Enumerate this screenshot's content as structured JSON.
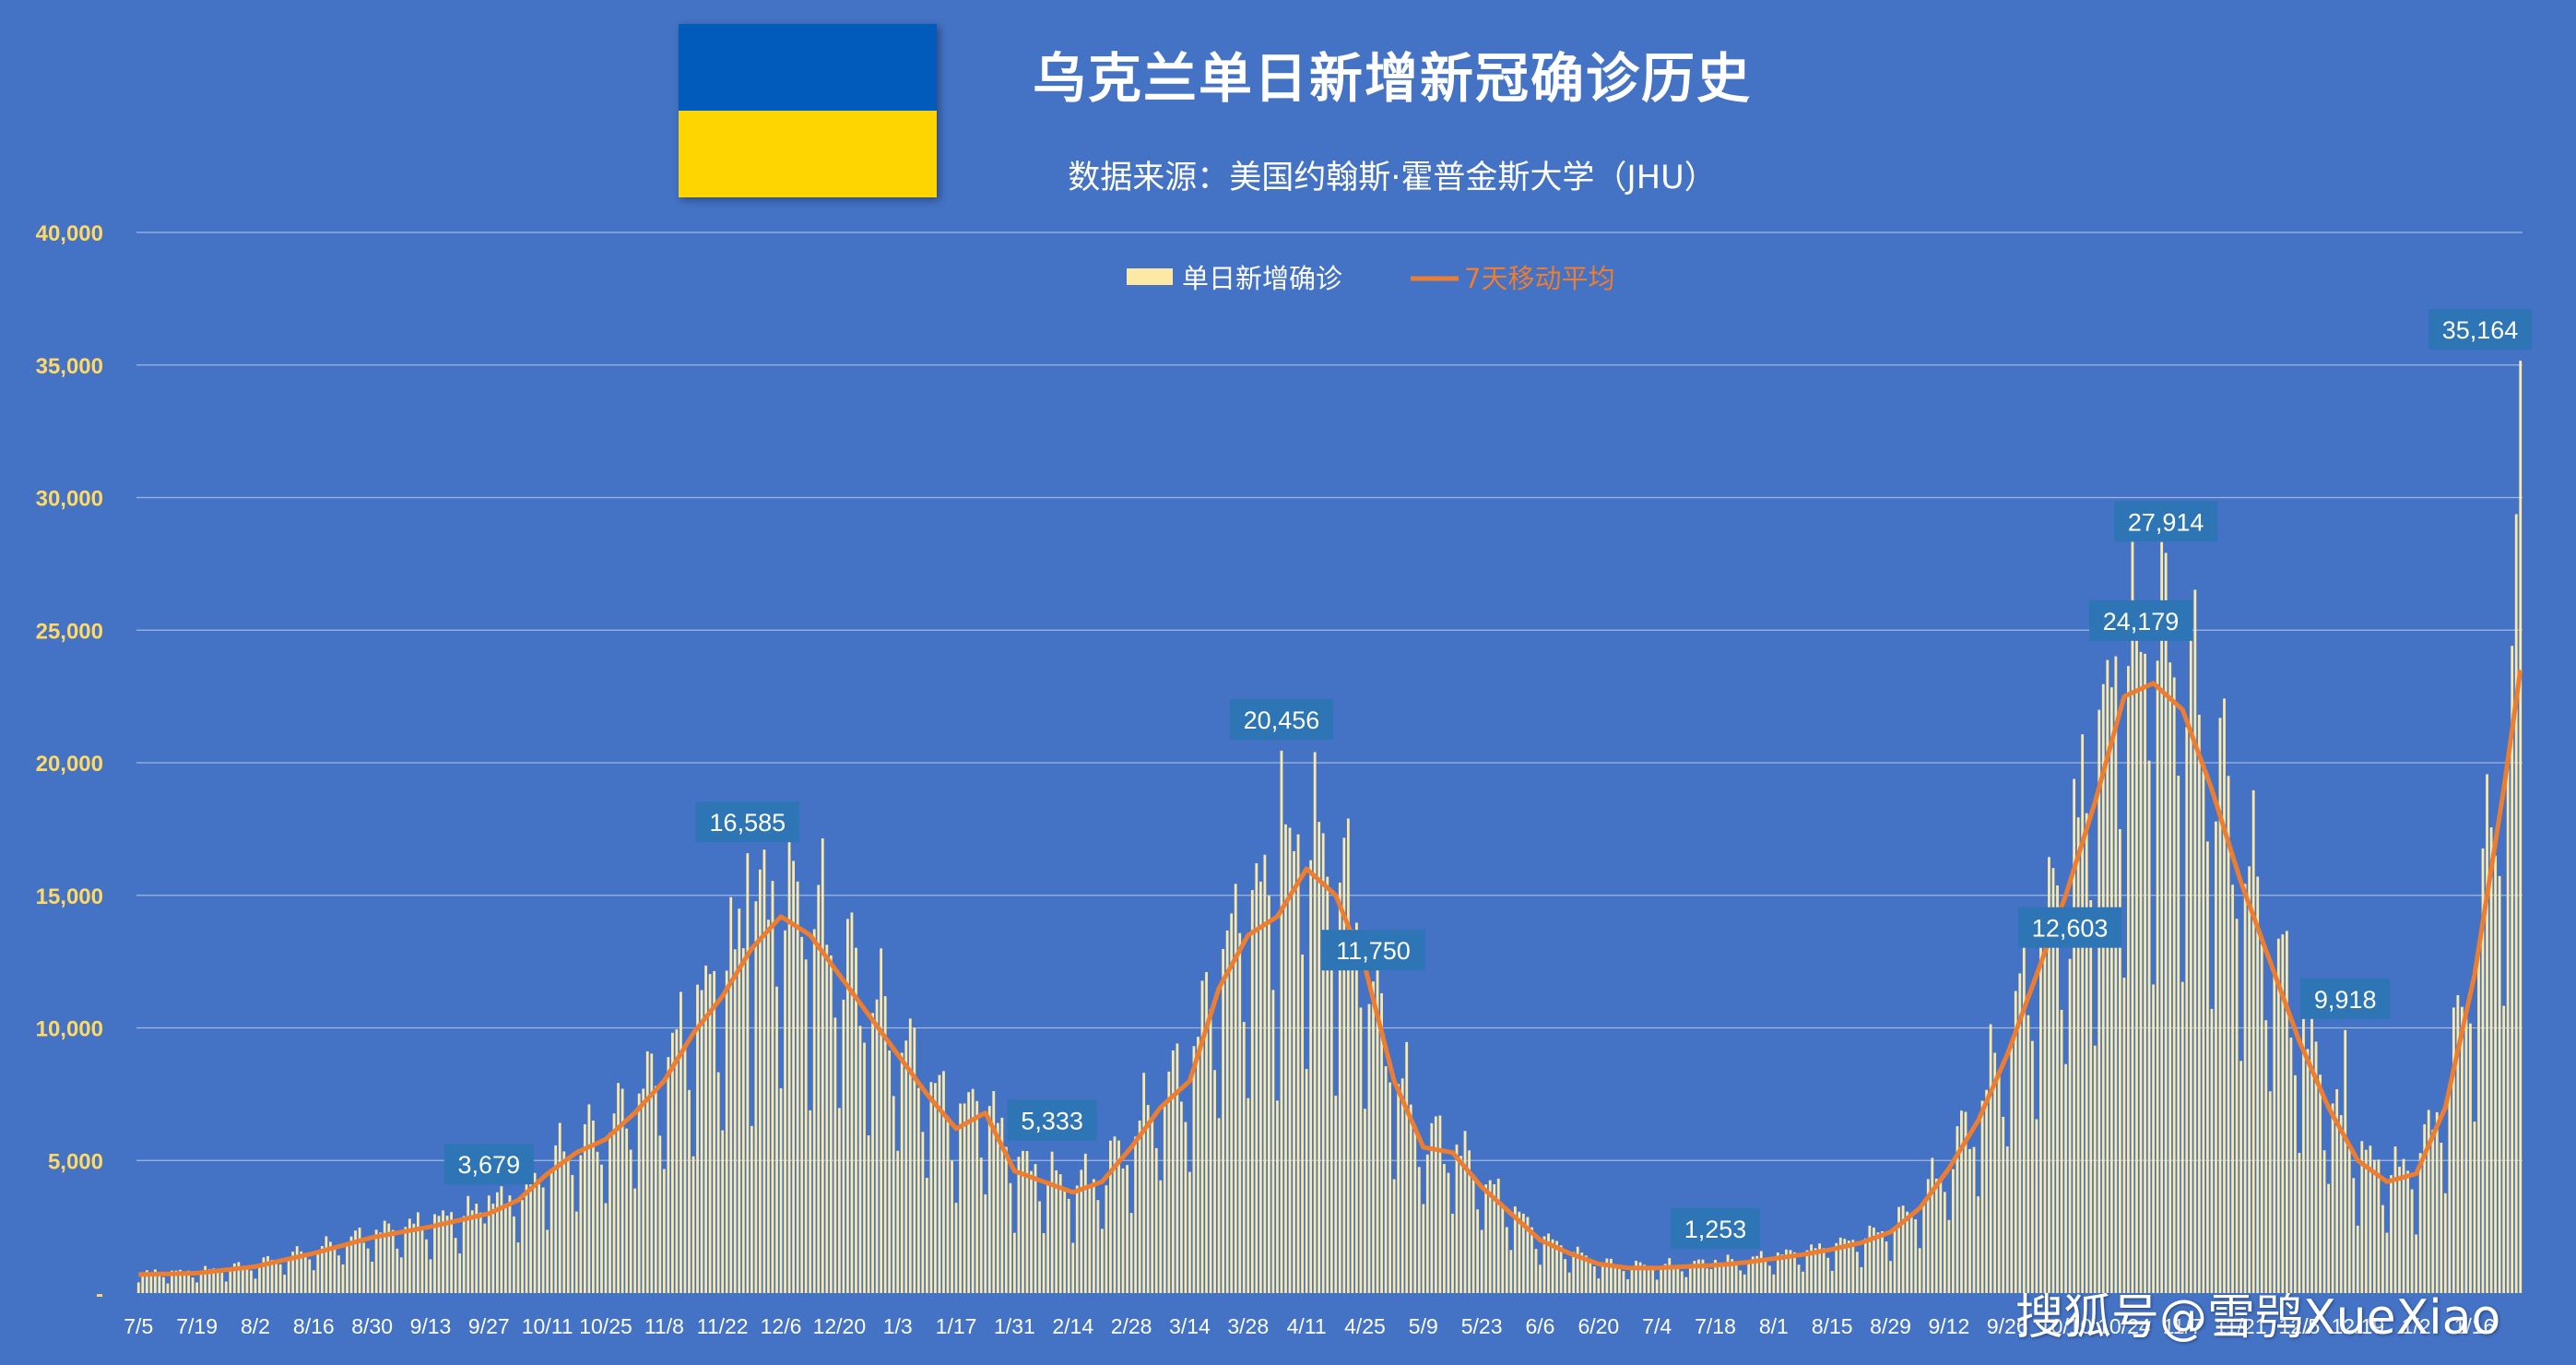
{
  "flag": {
    "name": "ukraine-flag",
    "colors": [
      "#005bbb",
      "#ffd500"
    ]
  },
  "watermark": "搜狐号@雪鸮XueXiao",
  "colors": {
    "background": "#4472c4",
    "bars": "#fde9a3",
    "line": "#ed7d31",
    "callout": "#2e75b6",
    "ytick": "#ffd966"
  },
  "chart_data": {
    "type": "bar",
    "title": "乌克兰单日新增新冠确诊历史",
    "subtitle": "数据来源：美国约翰斯·霍普金斯大学（JHU）",
    "xlabel": "",
    "ylabel": "",
    "ylim": [
      0,
      40000
    ],
    "y_ticks": [
      {
        "value": 0,
        "label": "-"
      },
      {
        "value": 5000,
        "label": "5,000"
      },
      {
        "value": 10000,
        "label": "10,000"
      },
      {
        "value": 15000,
        "label": "15,000"
      },
      {
        "value": 20000,
        "label": "20,000"
      },
      {
        "value": 25000,
        "label": "25,000"
      },
      {
        "value": 30000,
        "label": "30,000"
      },
      {
        "value": 35000,
        "label": "35,000"
      },
      {
        "value": 40000,
        "label": "40,000"
      }
    ],
    "grid": true,
    "legend_position": "top-center",
    "x_tick_labels": [
      "7/5",
      "7/19",
      "8/2",
      "8/16",
      "8/30",
      "9/13",
      "9/27",
      "10/11",
      "10/25",
      "11/8",
      "11/22",
      "12/6",
      "12/20",
      "1/3",
      "1/17",
      "1/31",
      "2/14",
      "2/28",
      "3/14",
      "3/28",
      "4/11",
      "4/25",
      "5/9",
      "5/23",
      "6/6",
      "6/20",
      "7/4",
      "7/18",
      "8/1",
      "8/15",
      "8/29",
      "9/12",
      "9/26",
      "10/10",
      "10/24",
      "11/7",
      "11/21",
      "12/5",
      "12/19",
      "1/2",
      "1/16"
    ],
    "x_tick_day_offsets": [
      0,
      14,
      28,
      42,
      56,
      70,
      84,
      98,
      112,
      126,
      140,
      154,
      168,
      182,
      196,
      210,
      224,
      238,
      252,
      266,
      280,
      294,
      308,
      322,
      336,
      350,
      364,
      378,
      392,
      406,
      420,
      434,
      448,
      462,
      476,
      490,
      504,
      518,
      532,
      546,
      560
    ],
    "num_days": 572,
    "series": [
      {
        "name": "单日新增确诊",
        "kind": "bar",
        "color": "#fde9a3"
      },
      {
        "name": "7天移动平均",
        "kind": "line",
        "color": "#ed7d31"
      }
    ],
    "moving_average_knots": [
      [
        0,
        700
      ],
      [
        14,
        750
      ],
      [
        28,
        1000
      ],
      [
        42,
        1500
      ],
      [
        56,
        2100
      ],
      [
        70,
        2500
      ],
      [
        84,
        3000
      ],
      [
        91,
        3500
      ],
      [
        98,
        4500
      ],
      [
        105,
        5300
      ],
      [
        112,
        5800
      ],
      [
        119,
        6800
      ],
      [
        126,
        8000
      ],
      [
        133,
        9800
      ],
      [
        140,
        11200
      ],
      [
        147,
        13000
      ],
      [
        154,
        14200
      ],
      [
        161,
        13500
      ],
      [
        168,
        12000
      ],
      [
        175,
        10500
      ],
      [
        182,
        9000
      ],
      [
        189,
        7500
      ],
      [
        196,
        6200
      ],
      [
        203,
        6800
      ],
      [
        210,
        4600
      ],
      [
        217,
        4200
      ],
      [
        224,
        3800
      ],
      [
        231,
        4200
      ],
      [
        238,
        5500
      ],
      [
        245,
        7000
      ],
      [
        252,
        8000
      ],
      [
        259,
        11500
      ],
      [
        266,
        13500
      ],
      [
        273,
        14200
      ],
      [
        280,
        16000
      ],
      [
        287,
        15000
      ],
      [
        294,
        12300
      ],
      [
        301,
        8000
      ],
      [
        308,
        5500
      ],
      [
        315,
        5300
      ],
      [
        322,
        4000
      ],
      [
        329,
        3000
      ],
      [
        336,
        2000
      ],
      [
        343,
        1500
      ],
      [
        350,
        1100
      ],
      [
        357,
        950
      ],
      [
        364,
        950
      ],
      [
        371,
        1000
      ],
      [
        378,
        1050
      ],
      [
        385,
        1150
      ],
      [
        392,
        1300
      ],
      [
        399,
        1450
      ],
      [
        406,
        1650
      ],
      [
        413,
        1900
      ],
      [
        420,
        2300
      ],
      [
        427,
        3200
      ],
      [
        434,
        4700
      ],
      [
        441,
        6500
      ],
      [
        448,
        9000
      ],
      [
        455,
        12000
      ],
      [
        462,
        15000
      ],
      [
        469,
        18500
      ],
      [
        476,
        22500
      ],
      [
        483,
        23000
      ],
      [
        490,
        22000
      ],
      [
        497,
        19000
      ],
      [
        504,
        15500
      ],
      [
        511,
        12500
      ],
      [
        518,
        9500
      ],
      [
        525,
        7000
      ],
      [
        532,
        5000
      ],
      [
        539,
        4200
      ],
      [
        546,
        4500
      ],
      [
        553,
        7000
      ],
      [
        560,
        12000
      ],
      [
        567,
        19000
      ],
      [
        571,
        23500
      ]
    ],
    "data_labels": [
      {
        "day": 84,
        "value": 3679,
        "label": "3,679"
      },
      {
        "day": 146,
        "value": 16585,
        "label": "16,585"
      },
      {
        "day": 219,
        "value": 5333,
        "label": "5,333"
      },
      {
        "day": 274,
        "value": 20456,
        "label": "20,456"
      },
      {
        "day": 296,
        "value": 11750,
        "label": "11,750"
      },
      {
        "day": 378,
        "value": 1253,
        "label": "1,253"
      },
      {
        "day": 463,
        "value": 12603,
        "label": "12,603"
      },
      {
        "day": 480,
        "value": 24179,
        "label": "24,179"
      },
      {
        "day": 486,
        "value": 27914,
        "label": "27,914"
      },
      {
        "day": 529,
        "value": 9918,
        "label": "9,918"
      },
      {
        "day": 571,
        "value": 35164,
        "label": "35,164"
      }
    ]
  }
}
